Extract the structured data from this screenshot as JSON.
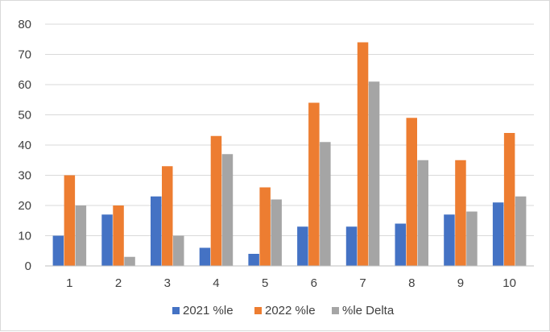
{
  "chart_data": {
    "type": "bar",
    "categories": [
      "1",
      "2",
      "3",
      "4",
      "5",
      "6",
      "7",
      "8",
      "9",
      "10"
    ],
    "series": [
      {
        "name": "2021 %le",
        "color": "#4472C4",
        "values": [
          10,
          17,
          23,
          6,
          4,
          13,
          13,
          14,
          17,
          21
        ]
      },
      {
        "name": "2022 %le",
        "color": "#ED7D31",
        "values": [
          30,
          20,
          33,
          43,
          26,
          54,
          74,
          49,
          35,
          44
        ]
      },
      {
        "name": "%le Delta",
        "color": "#A5A5A5",
        "values": [
          20,
          3,
          10,
          37,
          22,
          41,
          61,
          35,
          18,
          23
        ]
      }
    ],
    "ylim": [
      0,
      80
    ],
    "yticks": [
      "0",
      "10",
      "20",
      "30",
      "40",
      "50",
      "60",
      "70",
      "80"
    ],
    "grid": true,
    "legend_position": "bottom",
    "title": "",
    "xlabel": "",
    "ylabel": ""
  }
}
